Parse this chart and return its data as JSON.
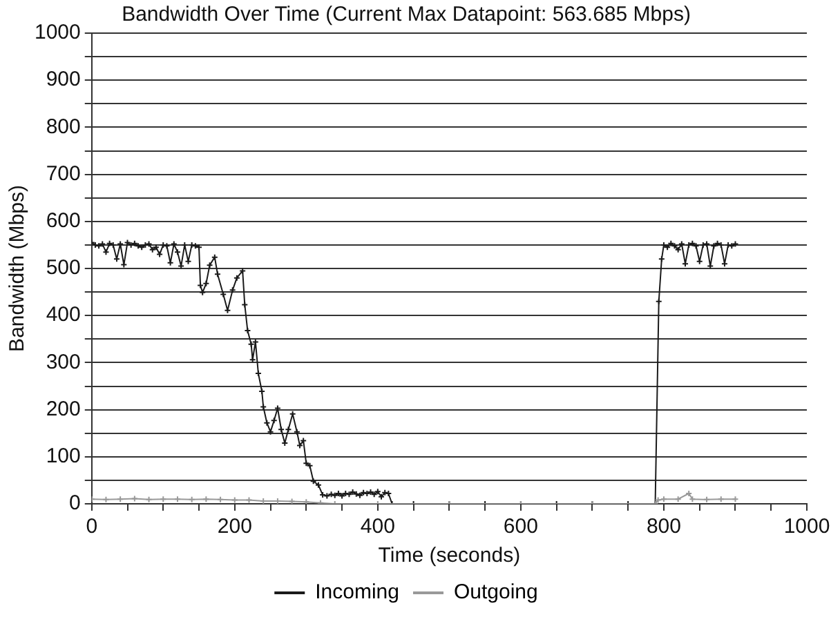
{
  "chart_data": {
    "type": "line",
    "title": "Bandwidth Over Time (Current Max Datapoint: 563.685 Mbps)",
    "xlabel": "Time (seconds)",
    "ylabel": "Bandwidth (Mbps)",
    "xlim": [
      0,
      1000
    ],
    "xticks": [
      0,
      {
        "value": 50,
        "label": null
      },
      {
        "value": 100,
        "label": null
      },
      {
        "value": 150,
        "label": null
      },
      200,
      {
        "value": 250,
        "label": null
      },
      {
        "value": 300,
        "label": null
      },
      {
        "value": 350,
        "label": null
      },
      400,
      {
        "value": 450,
        "label": null
      },
      {
        "value": 500,
        "label": null
      },
      {
        "value": 550,
        "label": null
      },
      600,
      {
        "value": 650,
        "label": null
      },
      {
        "value": 700,
        "label": null
      },
      {
        "value": 750,
        "label": null
      },
      800,
      {
        "value": 850,
        "label": null
      },
      {
        "value": 900,
        "label": null
      },
      {
        "value": 950,
        "label": null
      },
      1000
    ],
    "ylim": [
      0,
      1000
    ],
    "yticks": [
      0,
      {
        "value": 50,
        "label": null
      },
      100,
      {
        "value": 150,
        "label": null
      },
      200,
      {
        "value": 250,
        "label": null
      },
      300,
      {
        "value": 350,
        "label": null
      },
      400,
      {
        "value": 450,
        "label": null
      },
      500,
      {
        "value": 550,
        "label": null
      },
      600,
      {
        "value": 650,
        "label": null
      },
      700,
      {
        "value": 750,
        "label": null
      },
      800,
      {
        "value": 850,
        "label": null
      },
      900,
      {
        "value": 950,
        "label": null
      },
      1000
    ],
    "grid": "y",
    "legend": "bottom",
    "marker": "cross",
    "line_style": "solid",
    "series": [
      {
        "name": "Incoming",
        "color": "#1a1a1a",
        "x": [
          0,
          5,
          10,
          15,
          20,
          25,
          30,
          35,
          40,
          45,
          50,
          55,
          60,
          65,
          70,
          75,
          80,
          85,
          90,
          95,
          100,
          105,
          110,
          115,
          120,
          125,
          130,
          135,
          140,
          145,
          150,
          152,
          155,
          160,
          165,
          172,
          176,
          184,
          190,
          197,
          203,
          211,
          214,
          218,
          223,
          225,
          229,
          233,
          238,
          240,
          245,
          250,
          255,
          260,
          265,
          270,
          275,
          281,
          287,
          291,
          296,
          300,
          305,
          310,
          317,
          323,
          329,
          335,
          340,
          345,
          350,
          355,
          360,
          365,
          370,
          375,
          380,
          385,
          390,
          395,
          400,
          405,
          410,
          415,
          420,
          450,
          500,
          550,
          600,
          650,
          700,
          750,
          788,
          793,
          797,
          800,
          805,
          810,
          815,
          820,
          825,
          830,
          835,
          840,
          845,
          850,
          855,
          860,
          865,
          870,
          875,
          880,
          885,
          890,
          895,
          900
        ],
        "values": [
          555,
          550,
          548,
          552,
          535,
          553,
          550,
          520,
          552,
          508,
          555,
          550,
          553,
          548,
          545,
          550,
          552,
          540,
          545,
          530,
          550,
          548,
          512,
          552,
          535,
          505,
          550,
          515,
          550,
          548,
          545,
          464,
          449,
          468,
          507,
          524,
          488,
          445,
          411,
          454,
          480,
          495,
          423,
          368,
          339,
          306,
          344,
          277,
          239,
          206,
          172,
          153,
          177,
          203,
          158,
          129,
          158,
          191,
          153,
          124,
          134,
          86,
          81,
          48,
          40,
          19,
          17,
          20,
          18,
          22,
          17,
          22,
          20,
          25,
          21,
          18,
          24,
          22,
          25,
          20,
          26,
          15,
          24,
          22,
          0,
          0,
          0,
          0,
          0,
          0,
          0,
          0,
          0,
          430,
          520,
          550,
          545,
          553,
          548,
          540,
          552,
          510,
          550,
          553,
          548,
          515,
          550,
          552,
          505,
          548,
          553,
          550,
          510,
          550,
          548,
          552
        ]
      },
      {
        "name": "Outgoing",
        "color": "#999999",
        "x": [
          0,
          20,
          40,
          60,
          80,
          100,
          120,
          140,
          160,
          180,
          200,
          220,
          240,
          260,
          280,
          300,
          320,
          340,
          400,
          500,
          600,
          700,
          788,
          792,
          800,
          820,
          835,
          840,
          860,
          880,
          900
        ],
        "values": [
          10,
          9,
          10,
          11,
          9,
          10,
          10,
          9,
          10,
          9,
          8,
          8,
          6,
          6,
          5,
          4,
          2,
          0,
          0,
          0,
          0,
          0,
          0,
          8,
          10,
          10,
          22,
          10,
          9,
          10,
          10
        ]
      }
    ]
  }
}
